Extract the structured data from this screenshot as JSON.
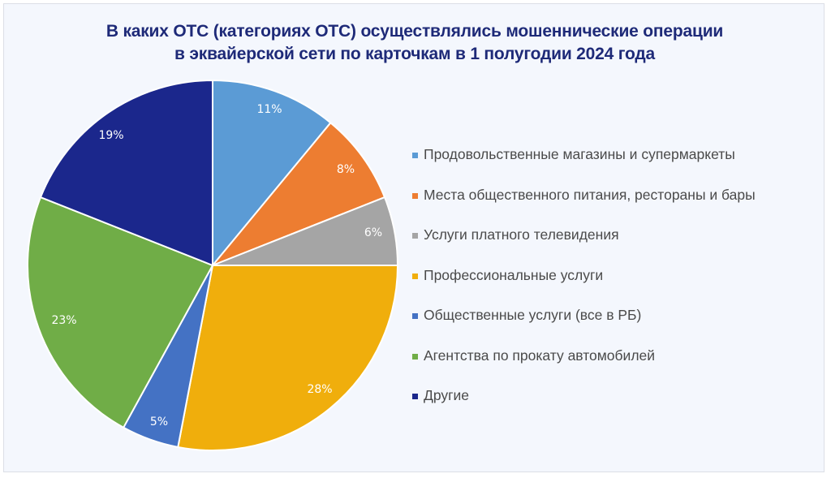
{
  "title": {
    "line1": "В каких ОТС (категориях ОТС) осуществлялись мошеннические операции",
    "line2": "в эквайерской сети по карточкам в 1 полугодии 2024 года"
  },
  "legend": [
    {
      "label": "Продовольственные магазины и супермаркеты",
      "color": "#5b9bd5"
    },
    {
      "label": "Места общественного питания, рестораны и бары",
      "color": "#ed7d31"
    },
    {
      "label": "Услуги платного телевидения",
      "color": "#a5a5a5"
    },
    {
      "label": "Профессиональные услуги",
      "color": "#f0ae0c"
    },
    {
      "label": "Общественные услуги (все в РБ)",
      "color": "#4472c4"
    },
    {
      "label": "Агентства по прокату автомобилей",
      "color": "#70ad47"
    },
    {
      "label": "Другие",
      "color": "#1b278c"
    }
  ],
  "slice_labels": [
    "11%",
    "8%",
    "6%",
    "28%",
    "5%",
    "23%",
    "19%"
  ],
  "chart_data": {
    "type": "pie",
    "title": "В каких ОТС (категориях ОТС) осуществлялись мошеннические операции в эквайерской сети по карточкам в 1 полугодии 2024 года",
    "categories": [
      "Продовольственные магазины и супермаркеты",
      "Места общественного питания, рестораны и бары",
      "Услуги платного телевидения",
      "Профессиональные услуги",
      "Общественные услуги (все в РБ)",
      "Агентства по прокату автомобилей",
      "Другие"
    ],
    "values": [
      11,
      8,
      6,
      28,
      5,
      23,
      19
    ],
    "unit": "%",
    "colors": [
      "#5b9bd5",
      "#ed7d31",
      "#a5a5a5",
      "#f0ae0c",
      "#4472c4",
      "#70ad47",
      "#1b278c"
    ],
    "start_angle": "12 o'clock, clockwise",
    "legend_position": "right"
  }
}
